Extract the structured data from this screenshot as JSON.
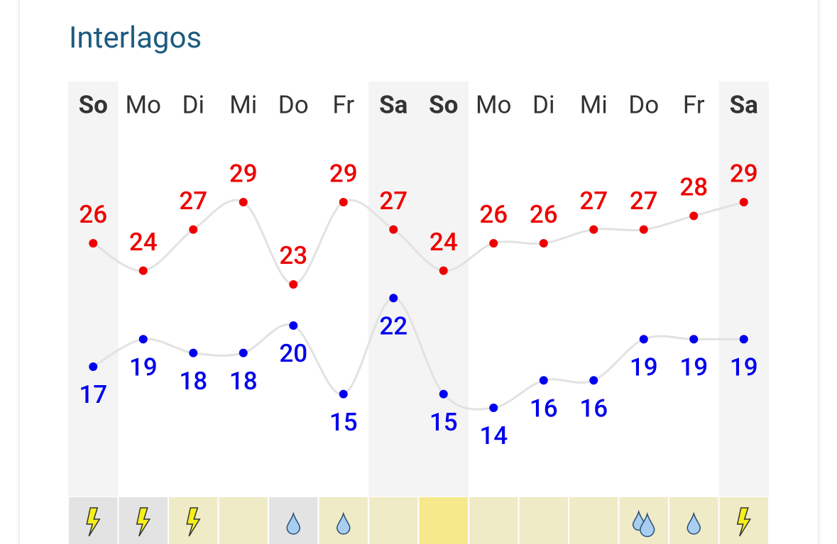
{
  "chart_data": {
    "type": "line",
    "title": "Interlagos",
    "categories": [
      "So",
      "Mo",
      "Di",
      "Mi",
      "Do",
      "Fr",
      "Sa",
      "So",
      "Mo",
      "Di",
      "Mi",
      "Do",
      "Fr",
      "Sa"
    ],
    "series": [
      {
        "color": "#ee0000",
        "values": [
          26,
          24,
          27,
          29,
          23,
          29,
          27,
          24,
          26,
          26,
          27,
          27,
          28,
          29
        ]
      },
      {
        "color": "#0000ee",
        "values": [
          17,
          19,
          18,
          18,
          20,
          15,
          22,
          15,
          14,
          16,
          16,
          19,
          19,
          19
        ]
      }
    ]
  }
}
